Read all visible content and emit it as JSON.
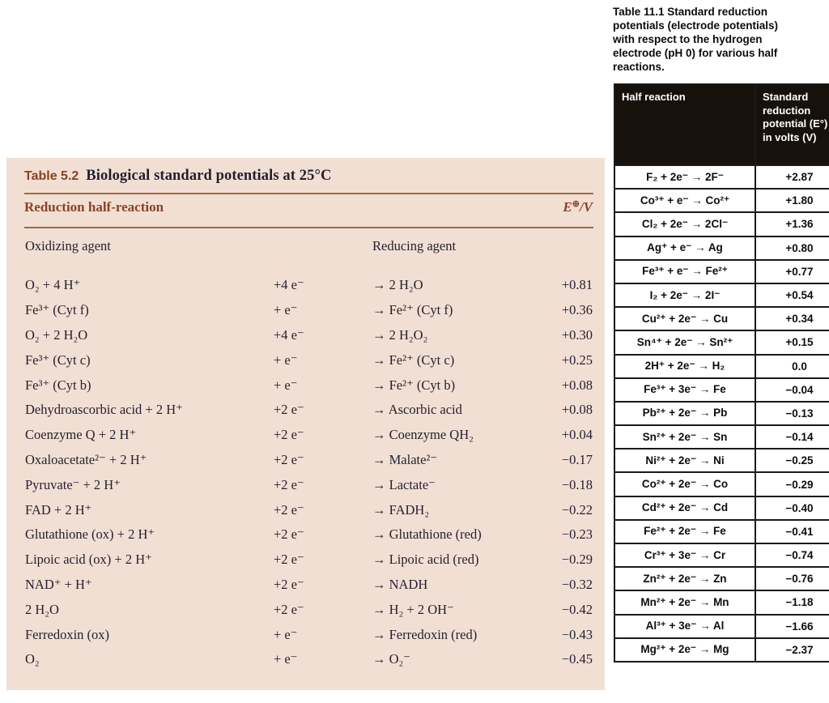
{
  "colors": {
    "panel_bg": "#f2dfd4",
    "accent_brown": "#8a4124",
    "rule_brown": "#a5683f",
    "ink": "#231f2c",
    "header_bg": "#17110c",
    "header_text": "#ffffff",
    "cell_border": "#1a1a1a"
  },
  "bio_table": {
    "label": "Table 5.2",
    "title": "Biological standard potentials at 25°C",
    "section_header": "Reduction half-reaction",
    "potential_header": {
      "symbol": "E",
      "sup": "⊕",
      "suffix": "/V"
    },
    "col_oxidizing": "Oxidizing agent",
    "col_reducing": "Reducing agent",
    "rows": [
      {
        "ox": "O₂ + 4 H⁺",
        "e": "+4 e⁻",
        "red": "→ 2 H₂O",
        "v": "+0.81"
      },
      {
        "ox": "Fe³⁺ (Cyt f)",
        "e": "+ e⁻",
        "red": "→ Fe²⁺ (Cyt f)",
        "v": "+0.36"
      },
      {
        "ox": "O₂ + 2 H₂O",
        "e": "+4 e⁻",
        "red": "→ 2 H₂O₂",
        "v": "+0.30"
      },
      {
        "ox": "Fe³⁺ (Cyt c)",
        "e": "+ e⁻",
        "red": "→ Fe²⁺ (Cyt c)",
        "v": "+0.25"
      },
      {
        "ox": "Fe³⁺ (Cyt b)",
        "e": "+ e⁻",
        "red": "→ Fe²⁺ (Cyt b)",
        "v": "+0.08"
      },
      {
        "ox": "Dehydroascorbic acid + 2 H⁺",
        "e": "+2 e⁻",
        "red": "→ Ascorbic acid",
        "v": "+0.08"
      },
      {
        "ox": "Coenzyme Q + 2 H⁺",
        "e": "+2 e⁻",
        "red": "→ Coenzyme QH₂",
        "v": "+0.04"
      },
      {
        "ox": "Oxaloacetate²⁻ + 2 H⁺",
        "e": "+2 e⁻",
        "red": "→ Malate²⁻",
        "v": "−0.17"
      },
      {
        "ox": "Pyruvate⁻ + 2 H⁺",
        "e": "+2 e⁻",
        "red": "→ Lactate⁻",
        "v": "−0.18"
      },
      {
        "ox": "FAD + 2 H⁺",
        "e": "+2 e⁻",
        "red": "→ FADH₂",
        "v": "−0.22"
      },
      {
        "ox": "Glutathione (ox) + 2 H⁺",
        "e": "+2 e⁻",
        "red": "→ Glutathione (red)",
        "v": "−0.23"
      },
      {
        "ox": "Lipoic acid (ox) + 2 H⁺",
        "e": "+2 e⁻",
        "red": "→ Lipoic acid (red)",
        "v": "−0.29"
      },
      {
        "ox": "NAD⁺ + H⁺",
        "e": "+2 e⁻",
        "red": "→ NADH",
        "v": "−0.32"
      },
      {
        "ox": "2 H₂O",
        "e": "+2 e⁻",
        "red": "→ H₂ + 2 OH⁻",
        "v": "−0.42"
      },
      {
        "ox": "Ferredoxin (ox)",
        "e": "+ e⁻",
        "red": "→ Ferredoxin (red)",
        "v": "−0.43"
      },
      {
        "ox": "O₂",
        "e": "+ e⁻",
        "red": "→ O₂⁻",
        "v": "−0.45"
      }
    ]
  },
  "electrode_table": {
    "caption_lines": [
      "Table 11.1 Standard reduction",
      "potentials (electrode potentials)",
      "with respect to the hydrogen",
      "electrode (pH 0) for various half",
      "reactions."
    ],
    "col_reaction": "Half reaction",
    "col_potential": "Standard reduction potential (E°) in volts (V)",
    "rows": [
      {
        "reaction": "F₂ + 2e⁻ → 2F⁻",
        "v": "+2.87"
      },
      {
        "reaction": "Co³⁺ + e⁻ → Co²⁺",
        "v": "+1.80"
      },
      {
        "reaction": "Cl₂ + 2e⁻ → 2Cl⁻",
        "v": "+1.36"
      },
      {
        "reaction": "Ag⁺ + e⁻ → Ag",
        "v": "+0.80"
      },
      {
        "reaction": "Fe³⁺ + e⁻ → Fe²⁺",
        "v": "+0.77"
      },
      {
        "reaction": "I₂ + 2e⁻ → 2I⁻",
        "v": "+0.54"
      },
      {
        "reaction": "Cu²⁺ + 2e⁻ → Cu",
        "v": "+0.34"
      },
      {
        "reaction": "Sn⁴⁺ + 2e⁻ → Sn²⁺",
        "v": "+0.15"
      },
      {
        "reaction": "2H⁺ + 2e⁻ → H₂",
        "v": "0.0"
      },
      {
        "reaction": "Fe³⁺ + 3e⁻ → Fe",
        "v": "−0.04"
      },
      {
        "reaction": "Pb²⁺ + 2e⁻ → Pb",
        "v": "−0.13"
      },
      {
        "reaction": "Sn²⁺ + 2e⁻ → Sn",
        "v": "−0.14"
      },
      {
        "reaction": "Ni²⁺ + 2e⁻ → Ni",
        "v": "−0.25"
      },
      {
        "reaction": "Co²⁺ + 2e⁻ → Co",
        "v": "−0.29"
      },
      {
        "reaction": "Cd²⁺ + 2e⁻ → Cd",
        "v": "−0.40"
      },
      {
        "reaction": "Fe²⁺ + 2e⁻ → Fe",
        "v": "−0.41"
      },
      {
        "reaction": "Cr³⁺ + 3e⁻ → Cr",
        "v": "−0.74"
      },
      {
        "reaction": "Zn²⁺ + 2e⁻ → Zn",
        "v": "−0.76"
      },
      {
        "reaction": "Mn²⁺ + 2e⁻ → Mn",
        "v": "−1.18"
      },
      {
        "reaction": "Al³⁺ + 3e⁻ → Al",
        "v": "−1.66"
      },
      {
        "reaction": "Mg²⁺ + 2e⁻ → Mg",
        "v": "−2.37"
      }
    ]
  }
}
